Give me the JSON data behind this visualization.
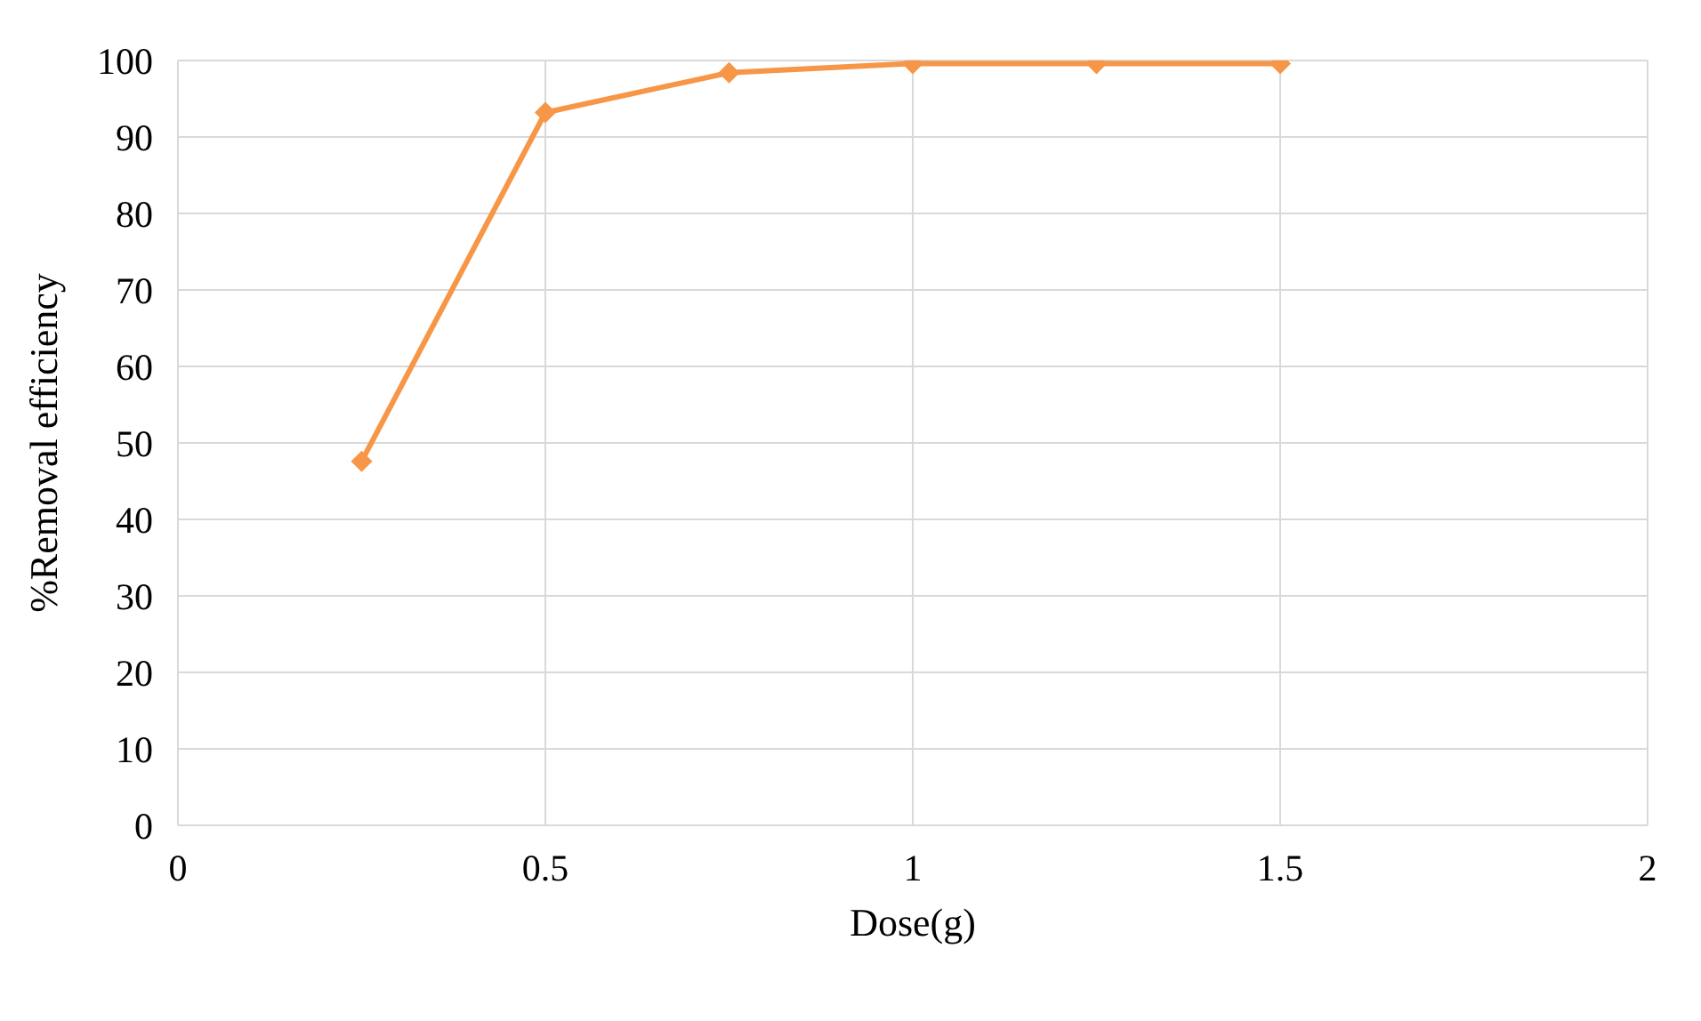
{
  "chart_data": {
    "type": "line",
    "xlabel": "Dose(g)",
    "ylabel": "%Removal efficiency",
    "x": [
      0.25,
      0.5,
      0.75,
      1,
      1.25,
      1.5
    ],
    "series": [
      {
        "color": "#f79646",
        "values": [
          47.6,
          93.2,
          98.4,
          99.6,
          99.6,
          99.6
        ]
      }
    ],
    "xlim": [
      0,
      2
    ],
    "xticks": [
      0,
      0.5,
      1,
      1.5,
      2
    ],
    "ylim": [
      0,
      100
    ],
    "yticks": [
      0,
      10,
      20,
      30,
      40,
      50,
      60,
      70,
      80,
      90,
      100
    ],
    "grid": true,
    "marker": "diamond",
    "line_style": "solid",
    "legend": false
  }
}
